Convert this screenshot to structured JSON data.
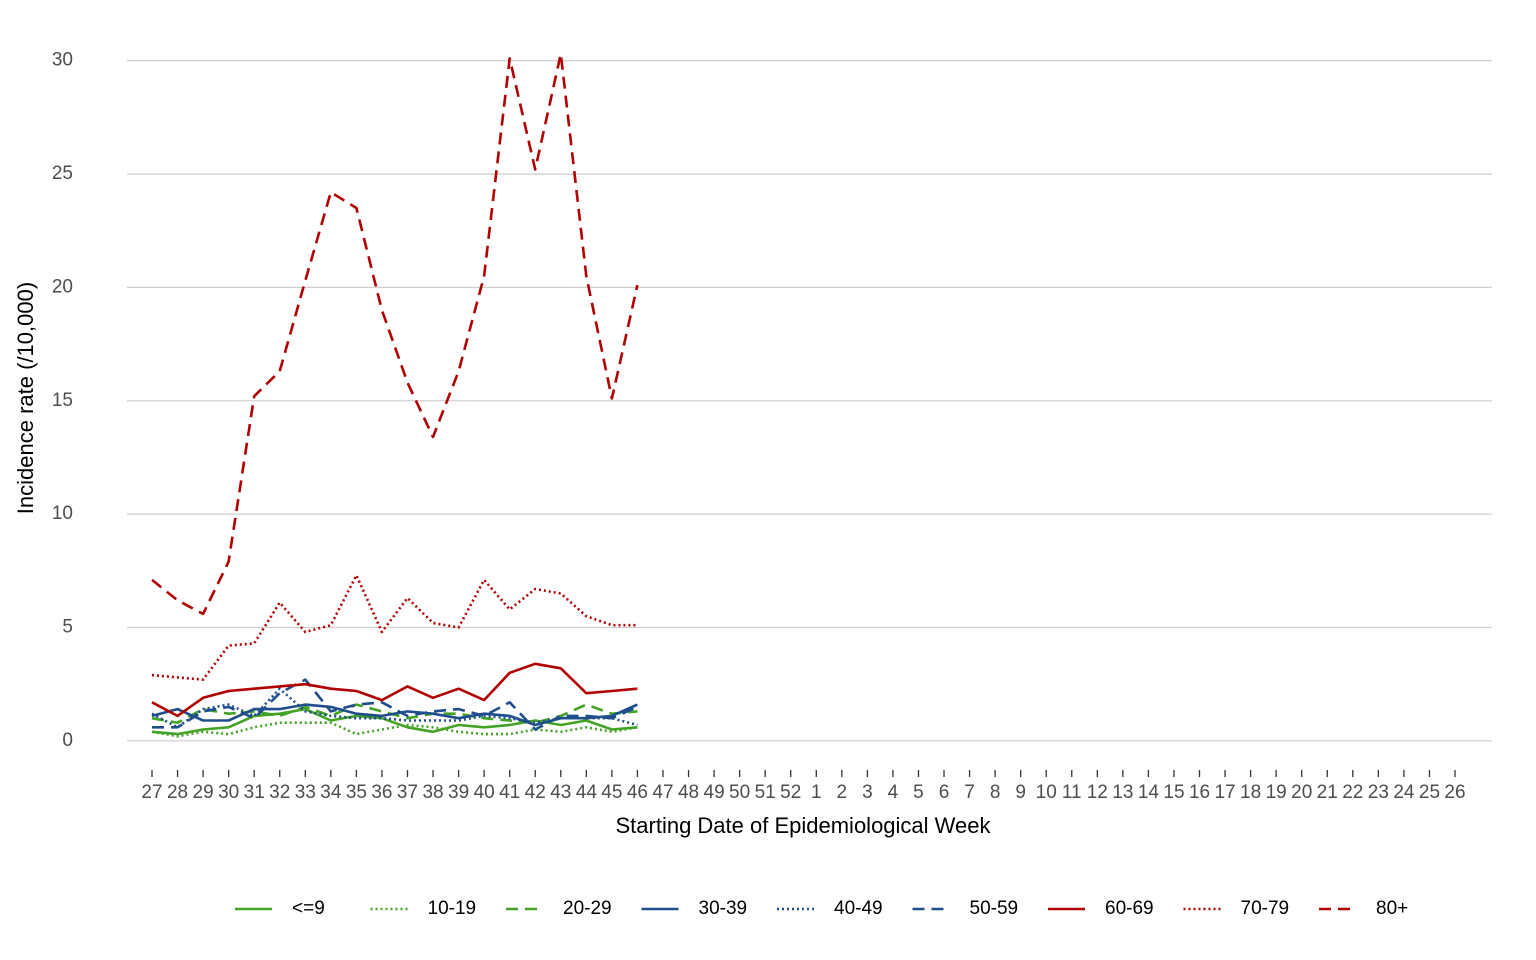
{
  "chart_data": {
    "type": "line",
    "xlabel": "Starting Date of Epidemiological Week",
    "ylabel": "Incidence rate (/10,000)",
    "categories": [
      27,
      28,
      29,
      30,
      31,
      32,
      33,
      34,
      35,
      36,
      37,
      38,
      39,
      40,
      41,
      42,
      43,
      44,
      45,
      46,
      47,
      48,
      49,
      50,
      51,
      52,
      1,
      2,
      3,
      4,
      5,
      6,
      7,
      8,
      9,
      10,
      11,
      12,
      13,
      14,
      15,
      16,
      17,
      18,
      19,
      20,
      21,
      22,
      23,
      24,
      25,
      26
    ],
    "ylim": [
      -0.8,
      31
    ],
    "yticks": [
      0,
      5,
      10,
      15,
      20,
      25,
      30
    ],
    "grid": true,
    "legend": "bottom",
    "series": [
      {
        "name": "<=9",
        "color": "#43a325",
        "linestyle": "solid",
        "values": [
          0.4,
          0.3,
          0.5,
          0.6,
          1.1,
          1.2,
          1.4,
          0.9,
          1.1,
          1.0,
          0.6,
          0.4,
          0.7,
          0.6,
          0.7,
          0.9,
          0.7,
          0.9,
          0.5,
          0.6,
          null,
          null,
          null,
          null,
          null,
          null,
          null,
          null,
          null,
          null,
          null,
          null,
          null,
          null,
          null,
          null,
          null,
          null,
          null,
          null,
          null,
          null,
          null,
          null,
          null,
          null,
          null,
          null,
          null,
          null,
          null,
          null
        ]
      },
      {
        "name": "10-19",
        "color": "#43a325",
        "linestyle": "dotted",
        "values": [
          0.4,
          0.2,
          0.4,
          0.3,
          0.6,
          0.8,
          0.8,
          0.8,
          0.3,
          0.5,
          0.7,
          0.6,
          0.4,
          0.3,
          0.3,
          0.5,
          0.4,
          0.6,
          0.4,
          0.6,
          null,
          null,
          null,
          null,
          null,
          null,
          null,
          null,
          null,
          null,
          null,
          null,
          null,
          null,
          null,
          null,
          null,
          null,
          null,
          null,
          null,
          null,
          null,
          null,
          null,
          null,
          null,
          null,
          null,
          null,
          null,
          null
        ]
      },
      {
        "name": "20-29",
        "color": "#43a325",
        "linestyle": "dashed",
        "values": [
          1.0,
          0.8,
          1.4,
          1.2,
          1.3,
          1.1,
          1.5,
          1.1,
          1.6,
          1.3,
          1.0,
          1.2,
          1.2,
          1.0,
          0.9,
          0.8,
          1.1,
          1.6,
          1.2,
          1.3,
          null,
          null,
          null,
          null,
          null,
          null,
          null,
          null,
          null,
          null,
          null,
          null,
          null,
          null,
          null,
          null,
          null,
          null,
          null,
          null,
          null,
          null,
          null,
          null,
          null,
          null,
          null,
          null,
          null,
          null,
          null,
          null
        ]
      },
      {
        "name": "30-39",
        "color": "#1f4e8c",
        "linestyle": "solid",
        "values": [
          1.1,
          1.4,
          0.9,
          0.9,
          1.4,
          1.4,
          1.6,
          1.5,
          1.2,
          1.1,
          1.3,
          1.2,
          1.0,
          1.2,
          1.1,
          0.7,
          1.0,
          1.0,
          1.1,
          1.6,
          null,
          null,
          null,
          null,
          null,
          null,
          null,
          null,
          null,
          null,
          null,
          null,
          null,
          null,
          null,
          null,
          null,
          null,
          null,
          null,
          null,
          null,
          null,
          null,
          null,
          null,
          null,
          null,
          null,
          null,
          null,
          null
        ]
      },
      {
        "name": "40-49",
        "color": "#1f4e8c",
        "linestyle": "dotted",
        "values": [
          1.2,
          0.6,
          1.4,
          1.6,
          1.1,
          2.3,
          1.3,
          1.1,
          1.0,
          1.0,
          0.9,
          0.9,
          0.9,
          1.1,
          1.0,
          0.8,
          1.0,
          1.0,
          1.0,
          0.7,
          null,
          null,
          null,
          null,
          null,
          null,
          null,
          null,
          null,
          null,
          null,
          null,
          null,
          null,
          null,
          null,
          null,
          null,
          null,
          null,
          null,
          null,
          null,
          null,
          null,
          null,
          null,
          null,
          null,
          null,
          null,
          null
        ]
      },
      {
        "name": "50-59",
        "color": "#1f4e8c",
        "linestyle": "dashed",
        "values": [
          0.6,
          0.6,
          1.3,
          1.5,
          1.0,
          2.1,
          2.7,
          1.3,
          1.6,
          1.7,
          1.1,
          1.3,
          1.4,
          1.1,
          1.7,
          0.5,
          1.1,
          1.1,
          1.0,
          1.5,
          null,
          null,
          null,
          null,
          null,
          null,
          null,
          null,
          null,
          null,
          null,
          null,
          null,
          null,
          null,
          null,
          null,
          null,
          null,
          null,
          null,
          null,
          null,
          null,
          null,
          null,
          null,
          null,
          null,
          null,
          null,
          null
        ]
      },
      {
        "name": "60-69",
        "color": "#b00000",
        "linestyle": "solid",
        "values": [
          1.7,
          1.1,
          1.9,
          2.2,
          2.3,
          2.4,
          2.5,
          2.3,
          2.2,
          1.8,
          2.4,
          1.9,
          2.3,
          1.8,
          3.0,
          3.4,
          3.2,
          2.1,
          2.2,
          2.3,
          null,
          null,
          null,
          null,
          null,
          null,
          null,
          null,
          null,
          null,
          null,
          null,
          null,
          null,
          null,
          null,
          null,
          null,
          null,
          null,
          null,
          null,
          null,
          null,
          null,
          null,
          null,
          null,
          null,
          null,
          null,
          null
        ]
      },
      {
        "name": "70-79",
        "color": "#b00000",
        "linestyle": "dotted",
        "values": [
          2.9,
          2.8,
          2.7,
          4.2,
          4.3,
          6.1,
          4.8,
          5.1,
          7.3,
          4.8,
          6.3,
          5.2,
          5.0,
          7.1,
          5.8,
          6.7,
          6.5,
          5.5,
          5.1,
          5.1,
          null,
          null,
          null,
          null,
          null,
          null,
          null,
          null,
          null,
          null,
          null,
          null,
          null,
          null,
          null,
          null,
          null,
          null,
          null,
          null,
          null,
          null,
          null,
          null,
          null,
          null,
          null,
          null,
          null,
          null,
          null,
          null
        ]
      },
      {
        "name": "80+",
        "color": "#b00000",
        "linestyle": "dashed",
        "values": [
          7.1,
          6.2,
          5.6,
          7.9,
          15.2,
          16.3,
          20.3,
          24.2,
          23.5,
          19.0,
          15.8,
          13.4,
          16.3,
          20.5,
          30.1,
          25.2,
          30.3,
          20.5,
          15.1,
          20.1,
          null,
          null,
          null,
          null,
          null,
          null,
          null,
          null,
          null,
          null,
          null,
          null,
          null,
          null,
          null,
          null,
          null,
          null,
          null,
          null,
          null,
          null,
          null,
          null,
          null,
          null,
          null,
          null,
          null,
          null,
          null,
          null
        ]
      }
    ]
  }
}
